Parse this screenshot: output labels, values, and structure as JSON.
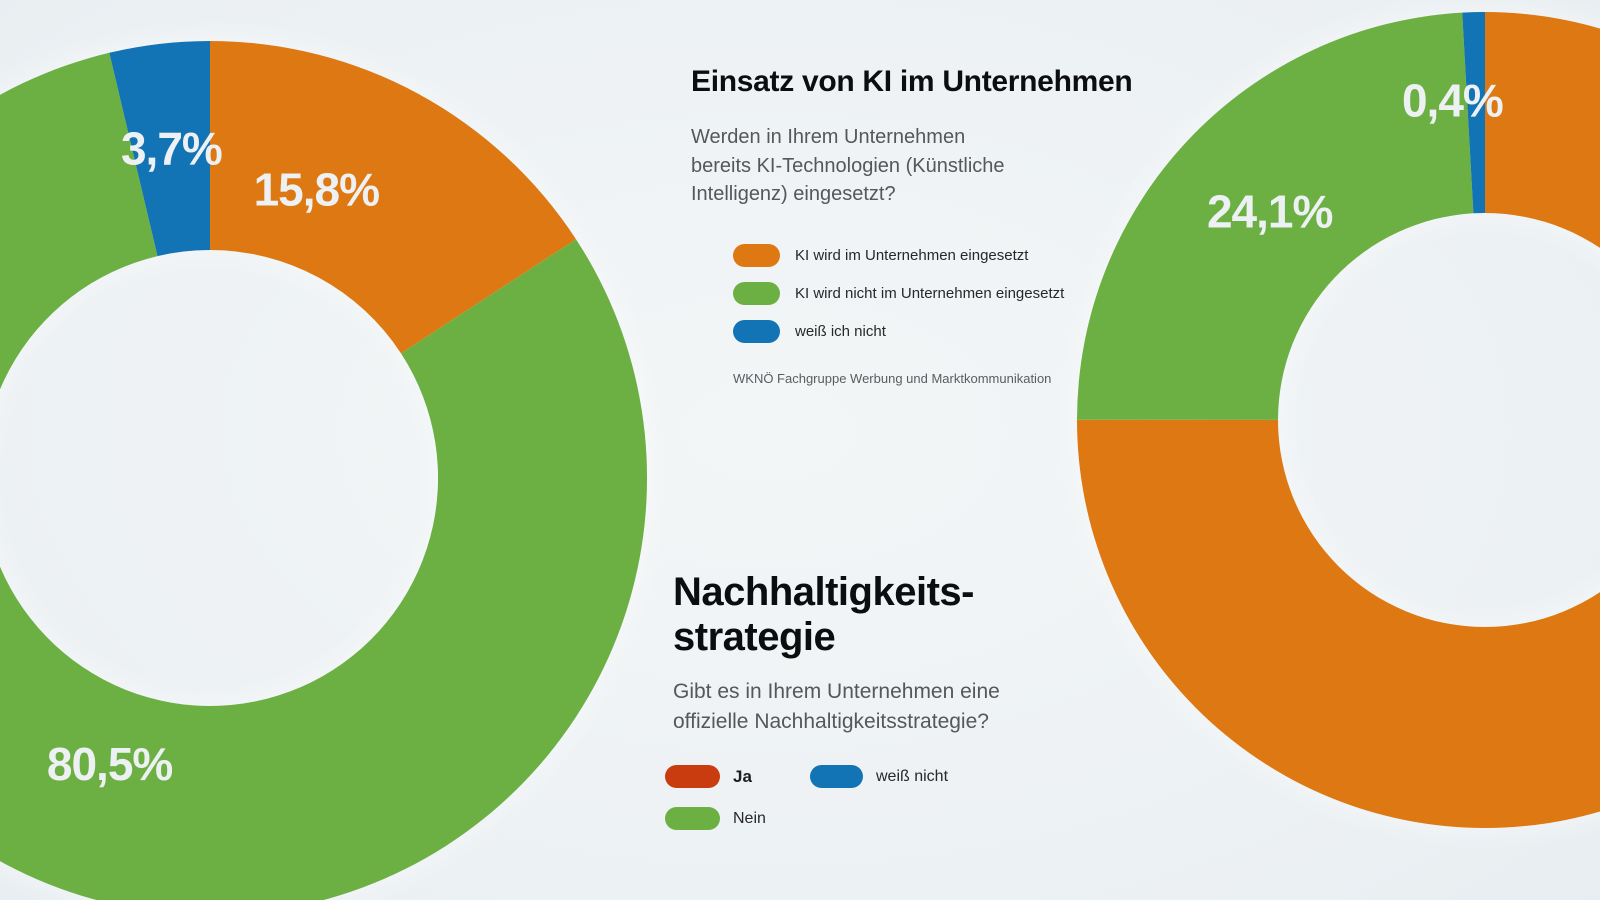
{
  "palette": {
    "orange": "#de7812",
    "green": "#6cb043",
    "blue": "#1374b5",
    "red": "#c93c0f",
    "title_color": "#0c0d0e",
    "question_color": "#55585b",
    "pct_label_color": "#edf1f3"
  },
  "sections": {
    "ki": {
      "title": "Einsatz von KI im Unternehmen",
      "question_lines": [
        "Werden in Ihrem Unternehmen",
        "bereits KI-Technologien (Künstliche",
        "Intelligenz) eingesetzt?"
      ],
      "legend": [
        {
          "label": "KI wird im Unternehmen eingesetzt",
          "color": "#de7812"
        },
        {
          "label": "KI wird nicht im Unternehmen eingesetzt",
          "color": "#6cb043"
        },
        {
          "label": "weiß ich nicht",
          "color": "#1374b5"
        }
      ],
      "source": "WKNÖ Fachgruppe Werbung und Marktkommunikation"
    },
    "nachhaltigkeit": {
      "title_lines": [
        "Nachhaltigkeits-",
        "strategie"
      ],
      "question_lines": [
        "Gibt es in Ihrem Unternehmen eine",
        "offizielle Nachhaltigkeitsstrategie?"
      ],
      "legend": [
        {
          "label": "Ja",
          "color": "#c93c0f"
        },
        {
          "label": "Nein",
          "color": "#6cb043"
        },
        {
          "label": "weiß nicht",
          "color": "#1374b5"
        }
      ]
    }
  },
  "chart_data": [
    {
      "type": "pie",
      "subtype": "donut",
      "title": "Einsatz von KI im Unternehmen",
      "legend_position": "right",
      "slices": [
        {
          "label": "KI wird im Unternehmen eingesetzt",
          "value": 15.8,
          "display": "15,8%",
          "color": "#de7812"
        },
        {
          "label": "KI wird nicht im Unternehmen eingesetzt",
          "value": 80.5,
          "display": "80,5%",
          "color": "#6cb043"
        },
        {
          "label": "weiß ich nicht",
          "value": 3.7,
          "display": "3,7%",
          "color": "#1374b5"
        }
      ]
    },
    {
      "type": "pie",
      "subtype": "donut",
      "title": "Nachhaltigkeitsstrategie",
      "legend_position": "left",
      "slices": [
        {
          "label": "Ja",
          "value": 75.5,
          "display": "",
          "color": "#de7812"
        },
        {
          "label": "Nein",
          "value": 24.1,
          "display": "24,1%",
          "color": "#6cb043"
        },
        {
          "label": "weiß nicht",
          "value": 0.4,
          "display": "0,4%",
          "color": "#1374b5"
        }
      ]
    }
  ]
}
